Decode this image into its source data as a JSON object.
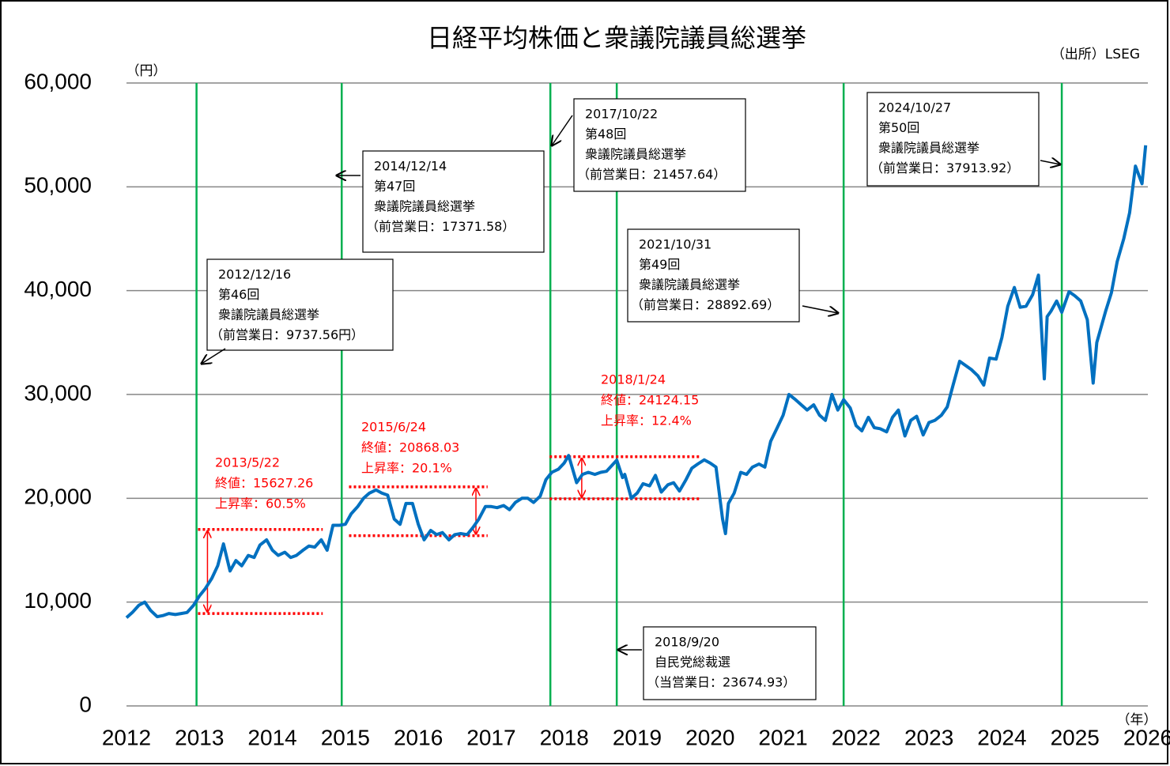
{
  "chart_data": {
    "type": "line",
    "title": "日経平均株価と衆議院議員総選挙",
    "source": "（出所）LSEG",
    "y_unit": "（円）",
    "x_unit": "（年）",
    "xlim": [
      2012,
      2026
    ],
    "xticks": [
      2012,
      2013,
      2014,
      2015,
      2016,
      2017,
      2018,
      2019,
      2020,
      2021,
      2022,
      2023,
      2024,
      2025,
      2026
    ],
    "ylim": [
      0,
      60000
    ],
    "yticks": [
      0,
      {
        "value": 10000,
        "label": "10,000"
      },
      {
        "value": 20000,
        "label": "20,000"
      },
      {
        "value": 30000,
        "label": "30,000"
      },
      {
        "value": 40000,
        "label": "40,000"
      },
      {
        "value": 50000,
        "label": "50,000"
      },
      {
        "value": 60000,
        "label": "60,000"
      }
    ],
    "grid": true,
    "series": [
      {
        "name": "日経平均株価",
        "color": "#0070c0",
        "x": [
          2012.0,
          2012.08,
          2012.17,
          2012.25,
          2012.33,
          2012.42,
          2012.5,
          2012.58,
          2012.67,
          2012.75,
          2012.83,
          2012.92,
          2013.0,
          2013.08,
          2013.17,
          2013.25,
          2013.33,
          2013.42,
          2013.5,
          2013.58,
          2013.67,
          2013.75,
          2013.83,
          2013.92,
          2014.0,
          2014.08,
          2014.17,
          2014.25,
          2014.33,
          2014.42,
          2014.5,
          2014.58,
          2014.67,
          2014.75,
          2014.83,
          2014.92,
          2015.0,
          2015.08,
          2015.17,
          2015.25,
          2015.33,
          2015.42,
          2015.5,
          2015.58,
          2015.67,
          2015.75,
          2015.83,
          2015.92,
          2016.0,
          2016.08,
          2016.17,
          2016.25,
          2016.33,
          2016.42,
          2016.5,
          2016.58,
          2016.67,
          2016.75,
          2016.83,
          2016.92,
          2017.0,
          2017.08,
          2017.17,
          2017.25,
          2017.33,
          2017.42,
          2017.5,
          2017.58,
          2017.67,
          2017.75,
          2017.83,
          2017.92,
          2018.0,
          2018.06,
          2018.17,
          2018.25,
          2018.33,
          2018.42,
          2018.5,
          2018.58,
          2018.72,
          2018.8,
          2018.83,
          2018.92,
          2019.0,
          2019.08,
          2019.17,
          2019.25,
          2019.33,
          2019.42,
          2019.5,
          2019.58,
          2019.67,
          2019.75,
          2019.83,
          2019.92,
          2020.0,
          2020.08,
          2020.17,
          2020.21,
          2020.25,
          2020.33,
          2020.42,
          2020.5,
          2020.58,
          2020.67,
          2020.75,
          2020.83,
          2020.92,
          2021.0,
          2021.08,
          2021.17,
          2021.25,
          2021.33,
          2021.42,
          2021.5,
          2021.58,
          2021.67,
          2021.75,
          2021.83,
          2021.92,
          2022.0,
          2022.08,
          2022.17,
          2022.25,
          2022.33,
          2022.42,
          2022.5,
          2022.58,
          2022.67,
          2022.75,
          2022.83,
          2022.92,
          2023.0,
          2023.08,
          2023.17,
          2023.25,
          2023.33,
          2023.42,
          2023.5,
          2023.58,
          2023.67,
          2023.75,
          2023.83,
          2023.92,
          2024.0,
          2024.08,
          2024.17,
          2024.25,
          2024.33,
          2024.42,
          2024.5,
          2024.58,
          2024.62,
          2024.67,
          2024.75,
          2024.82,
          2024.92,
          2025.0,
          2025.08,
          2025.17,
          2025.25,
          2025.3,
          2025.42,
          2025.5,
          2025.58,
          2025.67,
          2025.75,
          2025.83,
          2025.92,
          2025.97
        ],
        "values": [
          8500,
          9000,
          9700,
          10000,
          9200,
          8600,
          8700,
          8900,
          8800,
          8900,
          9000,
          9700,
          10600,
          11300,
          12300,
          13500,
          15600,
          13000,
          14000,
          13500,
          14500,
          14300,
          15500,
          16000,
          15000,
          14500,
          14800,
          14300,
          14500,
          15000,
          15400,
          15300,
          16000,
          15000,
          17400,
          17400,
          17500,
          18500,
          19200,
          20000,
          20500,
          20800,
          20500,
          20300,
          18000,
          17500,
          19500,
          19500,
          17500,
          16000,
          16900,
          16500,
          16700,
          16000,
          16500,
          16600,
          16500,
          17200,
          18000,
          19200,
          19200,
          19100,
          19300,
          18900,
          19600,
          20000,
          20000,
          19600,
          20200,
          21800,
          22500,
          22800,
          23400,
          24124,
          21500,
          22300,
          22500,
          22300,
          22500,
          22600,
          23675,
          22000,
          22300,
          20000,
          20500,
          21400,
          21200,
          22200,
          20600,
          21300,
          21500,
          20700,
          21800,
          22900,
          23300,
          23700,
          23400,
          23000,
          18000,
          16600,
          19500,
          20500,
          22500,
          22300,
          23000,
          23300,
          23000,
          25500,
          26800,
          28000,
          30000,
          29500,
          29000,
          28500,
          29000,
          28000,
          27500,
          30000,
          28500,
          29500,
          28700,
          27000,
          26500,
          27800,
          26800,
          26700,
          26400,
          27800,
          28500,
          26000,
          27500,
          27900,
          26100,
          27300,
          27500,
          28000,
          28800,
          30900,
          33200,
          32800,
          32400,
          31800,
          30900,
          33500,
          33400,
          35500,
          38500,
          40300,
          38400,
          38500,
          39600,
          41500,
          31500,
          37500,
          38000,
          39000,
          37914,
          39900,
          39500,
          39000,
          37200,
          31100,
          35000,
          38000,
          39800,
          42800,
          45000,
          47500,
          52000,
          50300,
          54000
        ]
      }
    ],
    "vlines": [
      2012.96,
      2014.95,
      2017.81,
      2018.72,
      2021.83,
      2024.82
    ],
    "annotations": [
      {
        "lines": [
          "2012/12/16",
          "第46回",
          "衆議院議員総選挙",
          "（前営業日：9737.56円）"
        ]
      },
      {
        "lines": [
          "2014/12/14",
          "第47回",
          "衆議院議員総選挙",
          "（前営業日：17371.58）"
        ]
      },
      {
        "lines": [
          "2017/10/22",
          "第48回",
          "衆議院議員総選挙",
          "（前営業日：21457.64）"
        ]
      },
      {
        "lines": [
          "2021/10/31",
          "第49回",
          "衆議院議員総選挙",
          "（前営業日：28892.69）"
        ]
      },
      {
        "lines": [
          "2024/10/27",
          "第50回",
          "衆議院議員総選挙",
          "（前営業日：37913.92）"
        ]
      },
      {
        "lines": [
          "2018/9/20",
          "自民党総裁選",
          "（当営業日：23674.93）"
        ]
      }
    ],
    "ranges": [
      {
        "lines": [
          "2013/5/22",
          "終値：15627.26",
          "上昇率：60.5%"
        ],
        "low": 8900,
        "high": 17000,
        "x0": 2012.98,
        "x1": 2014.69,
        "arrow_x": 2013.11
      },
      {
        "lines": [
          "2015/6/24",
          "終値：20868.03",
          "上昇率：20.1%"
        ],
        "low": 16400,
        "high": 21100,
        "x0": 2015.05,
        "x1": 2016.95,
        "arrow_x": 2016.79
      },
      {
        "lines": [
          "2018/1/24",
          "終値：24124.15",
          "上昇率：12.4%"
        ],
        "low": 19950,
        "high": 24000,
        "x0": 2017.8,
        "x1": 2019.88,
        "arrow_x": 2018.24
      }
    ]
  }
}
